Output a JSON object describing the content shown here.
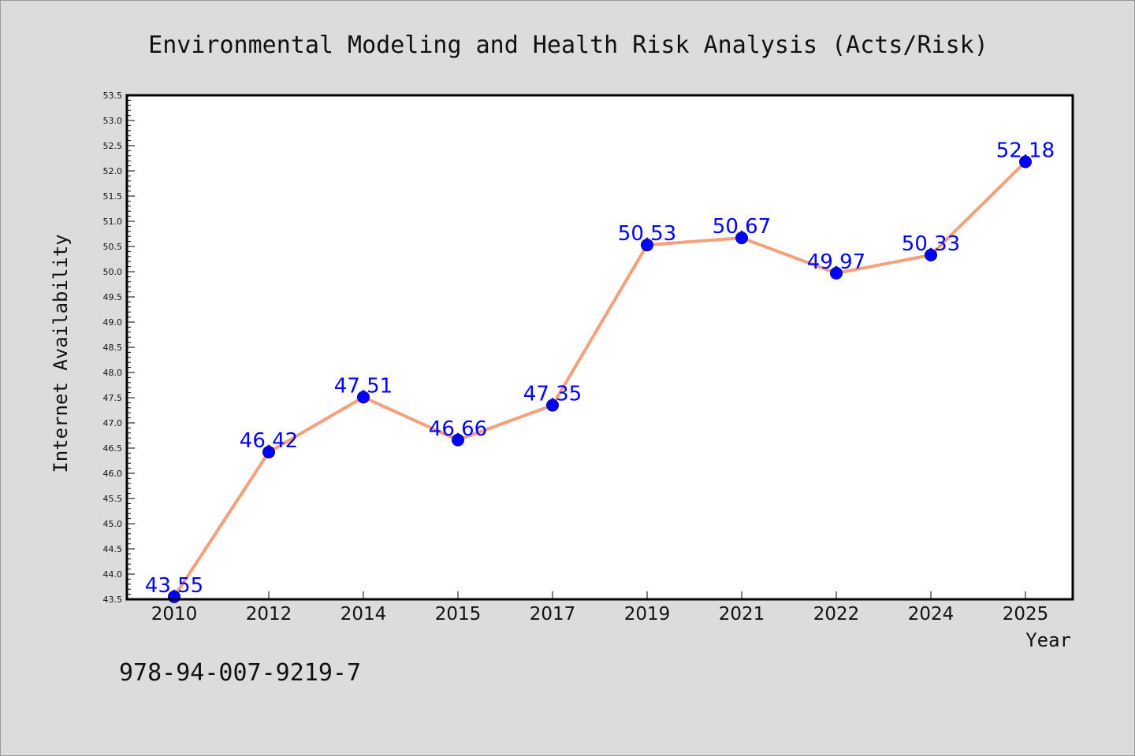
{
  "chart_data": {
    "type": "line",
    "title": "Environmental Modeling and Health Risk Analysis (Acts/Risk)",
    "xlabel": "Year",
    "ylabel": "Internet Availability",
    "categories": [
      "2010",
      "2012",
      "2014",
      "2015",
      "2017",
      "2019",
      "2021",
      "2022",
      "2024",
      "2025"
    ],
    "series": [
      {
        "values": [
          43.55,
          46.42,
          47.51,
          46.66,
          47.35,
          50.53,
          50.67,
          49.97,
          50.33,
          52.18
        ],
        "data_labels": [
          "43.55",
          "46.42",
          "47.51",
          "46.66",
          "47.35",
          "50.53",
          "50.67",
          "49.97",
          "50.33",
          "52.18"
        ],
        "line_color": "#f4a07a",
        "marker_color": "#0000ff"
      }
    ],
    "ylim": [
      43.5,
      53.5
    ],
    "yticks": [
      "43.5",
      "44.0",
      "44.5",
      "45.0",
      "45.5",
      "46.0",
      "46.5",
      "47.0",
      "47.5",
      "48.0",
      "48.5",
      "49.0",
      "49.5",
      "50.0",
      "50.5",
      "51.0",
      "51.5",
      "52.0",
      "52.5",
      "53.0",
      "53.5"
    ],
    "grid": false,
    "legend": "none"
  },
  "footer_text": "978-94-007-9219-7",
  "colors": {
    "background": "#dcdcdc",
    "plot_background": "#ffffff",
    "line": "#f4a07a",
    "marker": "#0000ff",
    "data_label": "#0000ff"
  }
}
